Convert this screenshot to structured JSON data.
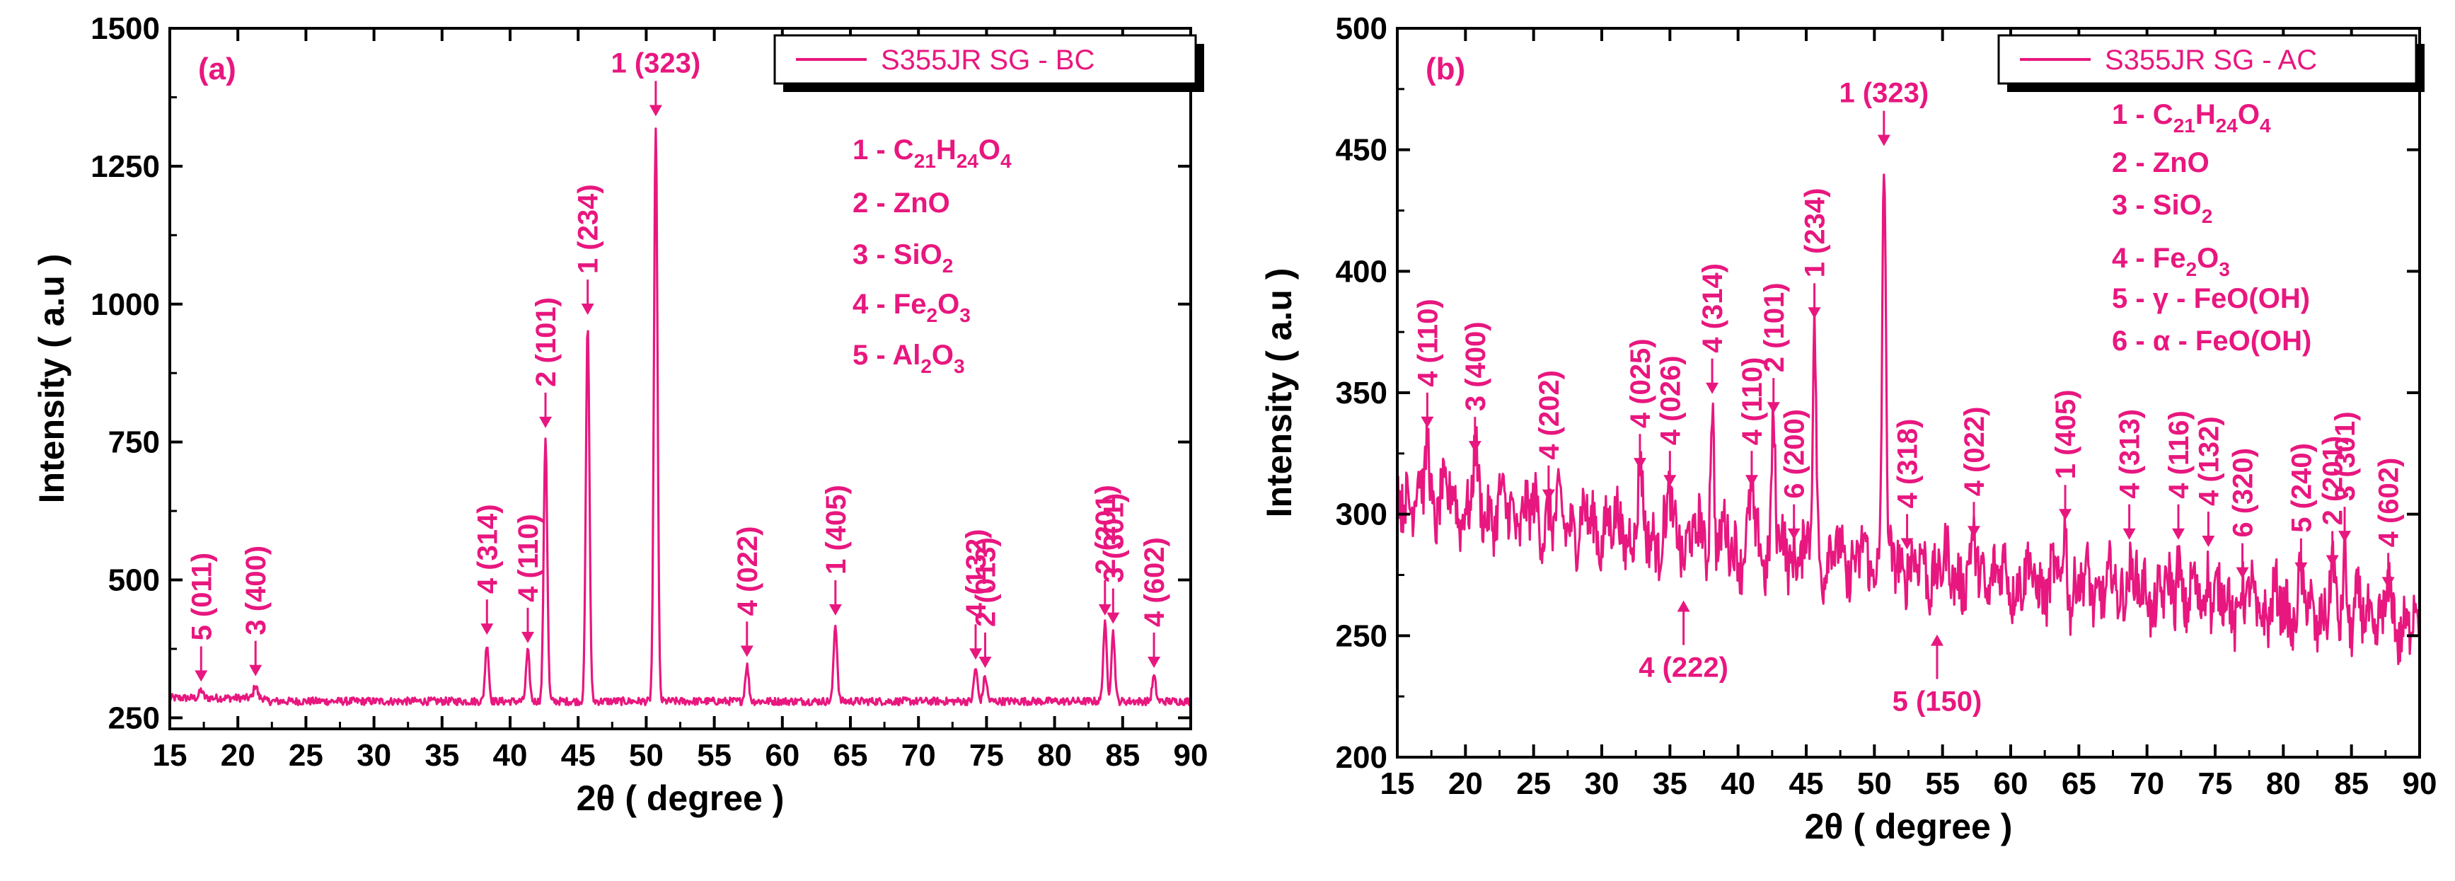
{
  "chart_data": [
    {
      "type": "line",
      "panel_label": "(a)",
      "xlabel": "2θ ( degree )",
      "ylabel": "Intensity ( a.u )",
      "xlim": [
        15,
        90
      ],
      "ylim": [
        230,
        1500
      ],
      "xticks": [
        15,
        20,
        25,
        30,
        35,
        40,
        45,
        50,
        55,
        60,
        65,
        70,
        75,
        80,
        85,
        90
      ],
      "yticks": [
        250,
        500,
        750,
        1000,
        1250,
        1500
      ],
      "legend": "S355JR SG - BC",
      "legend_position": "top-right",
      "baseline": 280,
      "peaks": [
        {
          "x": 17.3,
          "y": 300
        },
        {
          "x": 21.3,
          "y": 310
        },
        {
          "x": 38.3,
          "y": 385
        },
        {
          "x": 41.3,
          "y": 370
        },
        {
          "x": 42.6,
          "y": 760
        },
        {
          "x": 45.7,
          "y": 965
        },
        {
          "x": 50.7,
          "y": 1325
        },
        {
          "x": 57.4,
          "y": 345
        },
        {
          "x": 63.9,
          "y": 420
        },
        {
          "x": 74.2,
          "y": 340
        },
        {
          "x": 74.9,
          "y": 325
        },
        {
          "x": 83.7,
          "y": 420
        },
        {
          "x": 84.3,
          "y": 405
        },
        {
          "x": 87.3,
          "y": 325
        }
      ],
      "annotations": [
        {
          "text": "5 (011)",
          "x": 17.3,
          "y": 300
        },
        {
          "text": "3 (400)",
          "x": 21.3,
          "y": 310
        },
        {
          "text": "4 (314)",
          "x": 38.3,
          "y": 385
        },
        {
          "text": "4 (110)",
          "x": 41.3,
          "y": 370
        },
        {
          "text": "2 (101)",
          "x": 42.6,
          "y": 760
        },
        {
          "text": "1 (234)",
          "x": 45.7,
          "y": 965
        },
        {
          "text": "1 (323)",
          "x": 50.7,
          "y": 1325
        },
        {
          "text": "4 (022)",
          "x": 57.4,
          "y": 345
        },
        {
          "text": "1 (405)",
          "x": 63.9,
          "y": 420
        },
        {
          "text": "4 (132)",
          "x": 74.2,
          "y": 340
        },
        {
          "text": "2 (013)",
          "x": 74.9,
          "y": 325
        },
        {
          "text": "2 (201)",
          "x": 83.7,
          "y": 420
        },
        {
          "text": "3 (301)",
          "x": 84.3,
          "y": 405
        },
        {
          "text": "4 (602)",
          "x": 87.3,
          "y": 325
        }
      ],
      "phase_legend": [
        {
          "num": "1",
          "parts": [
            [
              "C",
              ""
            ],
            [
              "21",
              "sub"
            ],
            [
              "H",
              ""
            ],
            [
              "24",
              "sub"
            ],
            [
              "O",
              ""
            ],
            [
              "4",
              "sub"
            ]
          ]
        },
        {
          "num": "2",
          "parts": [
            [
              "ZnO",
              ""
            ]
          ]
        },
        {
          "num": "3",
          "parts": [
            [
              "SiO",
              ""
            ],
            [
              "2",
              "sub"
            ]
          ]
        },
        {
          "num": "4",
          "parts": [
            [
              "Fe",
              ""
            ],
            [
              "2",
              "sub"
            ],
            [
              "O",
              ""
            ],
            [
              "3",
              "sub"
            ]
          ]
        },
        {
          "num": "5",
          "parts": [
            [
              "Al",
              ""
            ],
            [
              "2",
              "sub"
            ],
            [
              "O",
              ""
            ],
            [
              "3",
              "sub"
            ]
          ]
        }
      ]
    },
    {
      "type": "line",
      "panel_label": "(b)",
      "xlabel": "2θ ( degree )",
      "ylabel": "Intensity ( a.u )",
      "xlim": [
        15,
        90
      ],
      "ylim": [
        200,
        500
      ],
      "xticks": [
        15,
        20,
        25,
        30,
        35,
        40,
        45,
        50,
        55,
        60,
        65,
        70,
        75,
        80,
        85,
        90
      ],
      "yticks": [
        200,
        250,
        300,
        350,
        400,
        450,
        500
      ],
      "legend": "S355JR SG - AC",
      "legend_position": "top-right",
      "baseline_start": 310,
      "baseline_end": 255,
      "peaks": [
        {
          "x": 17.2,
          "y": 332
        },
        {
          "x": 20.7,
          "y": 322
        },
        {
          "x": 26.1,
          "y": 302
        },
        {
          "x": 32.8,
          "y": 315
        },
        {
          "x": 35.0,
          "y": 308
        },
        {
          "x": 36.0,
          "y": 268
        },
        {
          "x": 38.1,
          "y": 346
        },
        {
          "x": 41.0,
          "y": 308
        },
        {
          "x": 42.6,
          "y": 338
        },
        {
          "x": 44.1,
          "y": 286
        },
        {
          "x": 45.6,
          "y": 377
        },
        {
          "x": 50.7,
          "y": 448
        },
        {
          "x": 52.4,
          "y": 282
        },
        {
          "x": 54.6,
          "y": 254
        },
        {
          "x": 57.3,
          "y": 287
        },
        {
          "x": 64.0,
          "y": 294
        },
        {
          "x": 68.7,
          "y": 286
        },
        {
          "x": 72.3,
          "y": 286
        },
        {
          "x": 74.5,
          "y": 283
        },
        {
          "x": 77.0,
          "y": 270
        },
        {
          "x": 81.3,
          "y": 272
        },
        {
          "x": 83.6,
          "y": 275
        },
        {
          "x": 84.5,
          "y": 285
        },
        {
          "x": 87.7,
          "y": 266
        }
      ],
      "annotations": [
        {
          "text": "4 (110)",
          "x": 17.2,
          "y": 332,
          "side": "above"
        },
        {
          "text": "3 (400)",
          "x": 20.7,
          "y": 322,
          "side": "above"
        },
        {
          "text": "4 (202)",
          "x": 26.1,
          "y": 302,
          "side": "above"
        },
        {
          "text": "4 (025)",
          "x": 32.8,
          "y": 315,
          "side": "above"
        },
        {
          "text": "4 (026)",
          "x": 35.0,
          "y": 308,
          "side": "above"
        },
        {
          "text": "4 (222)",
          "x": 36.0,
          "y": 268,
          "side": "below"
        },
        {
          "text": "4 (314)",
          "x": 38.1,
          "y": 346,
          "side": "above"
        },
        {
          "text": "4 (110)",
          "x": 41.0,
          "y": 308,
          "side": "above"
        },
        {
          "text": "2 (101)",
          "x": 42.6,
          "y": 338,
          "side": "above"
        },
        {
          "text": "6 (200)",
          "x": 44.1,
          "y": 286,
          "side": "above"
        },
        {
          "text": "1 (234)",
          "x": 45.6,
          "y": 377,
          "side": "above"
        },
        {
          "text": "1 (323)",
          "x": 50.7,
          "y": 448,
          "side": "above"
        },
        {
          "text": "4 (318)",
          "x": 52.4,
          "y": 282,
          "side": "above"
        },
        {
          "text": "5 (150)",
          "x": 54.6,
          "y": 254,
          "side": "below"
        },
        {
          "text": "4 (022)",
          "x": 57.3,
          "y": 287,
          "side": "above"
        },
        {
          "text": "1 (405)",
          "x": 64.0,
          "y": 294,
          "side": "above"
        },
        {
          "text": "4 (313)",
          "x": 68.7,
          "y": 286,
          "side": "above"
        },
        {
          "text": "4 (116)",
          "x": 72.3,
          "y": 286,
          "side": "above"
        },
        {
          "text": "4 (132)",
          "x": 74.5,
          "y": 283,
          "side": "above"
        },
        {
          "text": "6 (320)",
          "x": 77.0,
          "y": 270,
          "side": "above"
        },
        {
          "text": "5 (240)",
          "x": 81.3,
          "y": 272,
          "side": "above"
        },
        {
          "text": "2 (201)",
          "x": 83.6,
          "y": 275,
          "side": "above"
        },
        {
          "text": "3 (301)",
          "x": 84.5,
          "y": 285,
          "side": "above"
        },
        {
          "text": "4 (602)",
          "x": 87.7,
          "y": 266,
          "side": "above"
        }
      ],
      "phase_legend": [
        {
          "num": "1",
          "parts": [
            [
              "C",
              ""
            ],
            [
              "21",
              "sub"
            ],
            [
              "H",
              ""
            ],
            [
              "24",
              "sub"
            ],
            [
              "O",
              ""
            ],
            [
              "4",
              "sub"
            ]
          ]
        },
        {
          "num": "2",
          "parts": [
            [
              "ZnO",
              ""
            ]
          ]
        },
        {
          "num": "3",
          "parts": [
            [
              "SiO",
              ""
            ],
            [
              "2",
              "sub"
            ]
          ]
        },
        {
          "num": "4",
          "parts": [
            [
              "Fe",
              ""
            ],
            [
              "2",
              "sub"
            ],
            [
              "O",
              ""
            ],
            [
              "3",
              "sub"
            ]
          ]
        },
        {
          "num": "5",
          "parts": [
            [
              "γ - FeO(OH)",
              ""
            ]
          ]
        },
        {
          "num": "6",
          "parts": [
            [
              "α - FeO(OH)",
              ""
            ]
          ]
        }
      ]
    }
  ],
  "colors": {
    "series": "#e8177f",
    "axis": "#000000"
  }
}
